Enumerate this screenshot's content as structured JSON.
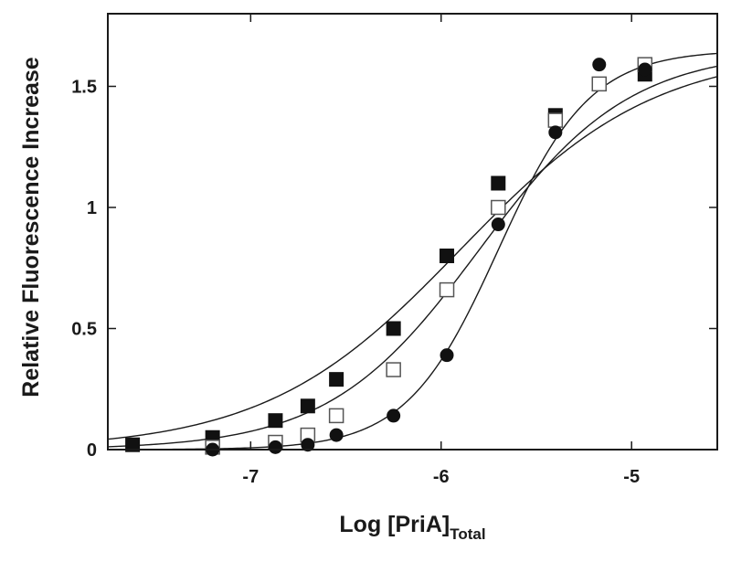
{
  "chart_data": {
    "type": "scatter",
    "xlabel": "Log [PriA]",
    "xlabel_subscript": "Total",
    "ylabel": "Relative Fluorescence Increase",
    "xlim": [
      -7.75,
      -4.55
    ],
    "ylim": [
      0,
      1.8
    ],
    "xticks": [
      -7,
      -6,
      -5
    ],
    "xtick_labels": [
      "-7",
      "-6",
      "-5"
    ],
    "yticks": [
      0,
      0.5,
      1,
      1.5
    ],
    "ytick_labels": [
      "0",
      "0.5",
      "1",
      "1.5"
    ],
    "grid": false,
    "series": [
      {
        "marker": "filled-square",
        "x": [
          -7.62,
          -7.2,
          -6.87,
          -6.7,
          -6.55,
          -6.25,
          -5.97,
          -5.7,
          -5.4,
          -4.93
        ],
        "y": [
          0.02,
          0.05,
          0.12,
          0.18,
          0.29,
          0.5,
          0.8,
          1.1,
          1.38,
          1.55
        ],
        "fit": {
          "A": 1.65,
          "x50": -5.9,
          "n": 0.85
        }
      },
      {
        "marker": "open-square",
        "x": [
          -7.2,
          -6.87,
          -6.7,
          -6.55,
          -6.25,
          -5.97,
          -5.7,
          -5.4,
          -5.17,
          -4.93
        ],
        "y": [
          0.01,
          0.03,
          0.06,
          0.14,
          0.33,
          0.66,
          1.0,
          1.36,
          1.51,
          1.59
        ],
        "fit": {
          "A": 1.65,
          "x50": -5.8,
          "n": 1.1
        }
      },
      {
        "marker": "filled-circle",
        "x": [
          -7.2,
          -6.87,
          -6.7,
          -6.55,
          -6.25,
          -5.97,
          -5.7,
          -5.4,
          -5.17,
          -4.93
        ],
        "y": [
          0.0,
          0.01,
          0.02,
          0.06,
          0.14,
          0.39,
          0.93,
          1.31,
          1.59,
          1.57
        ],
        "fit": {
          "A": 1.65,
          "x50": -5.7,
          "n": 1.8
        }
      }
    ]
  }
}
